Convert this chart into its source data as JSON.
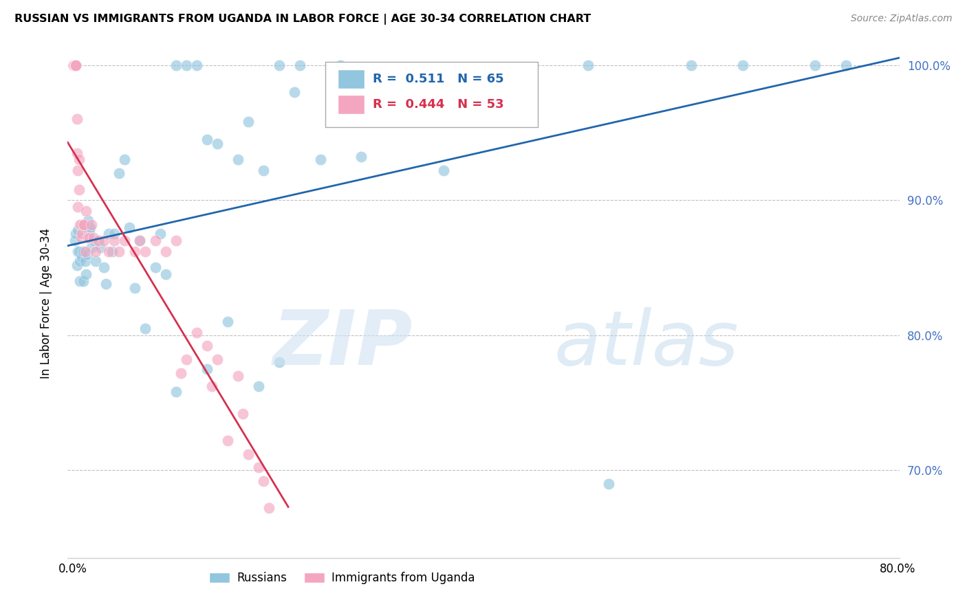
{
  "title": "RUSSIAN VS IMMIGRANTS FROM UGANDA IN LABOR FORCE | AGE 30-34 CORRELATION CHART",
  "source": "Source: ZipAtlas.com",
  "ylabel": "In Labor Force | Age 30-34",
  "xlim": [
    -0.005,
    0.802
  ],
  "ylim": [
    0.635,
    1.012
  ],
  "yticks": [
    0.7,
    0.8,
    0.9,
    1.0
  ],
  "ytick_labels": [
    "70.0%",
    "80.0%",
    "90.0%",
    "100.0%"
  ],
  "xtick_vals": [
    0.0,
    0.1,
    0.2,
    0.3,
    0.4,
    0.5,
    0.6,
    0.7,
    0.8
  ],
  "xtick_labels": [
    "0.0%",
    "",
    "",
    "",
    "",
    "",
    "",
    "",
    "80.0%"
  ],
  "R_blue": 0.511,
  "N_blue": 65,
  "R_pink": 0.444,
  "N_pink": 53,
  "blue_color": "#92c5de",
  "pink_color": "#f4a6c0",
  "blue_line_color": "#2166ac",
  "pink_line_color": "#d6304e",
  "grid_color": "#c0c0c0",
  "blue_x": [
    0.002,
    0.003,
    0.004,
    0.005,
    0.005,
    0.006,
    0.007,
    0.007,
    0.008,
    0.009,
    0.01,
    0.01,
    0.011,
    0.012,
    0.013,
    0.014,
    0.015,
    0.016,
    0.017,
    0.018,
    0.02,
    0.022,
    0.025,
    0.027,
    0.03,
    0.032,
    0.035,
    0.038,
    0.04,
    0.045,
    0.05,
    0.055,
    0.06,
    0.065,
    0.07,
    0.08,
    0.085,
    0.09,
    0.1,
    0.11,
    0.12,
    0.13,
    0.14,
    0.16,
    0.17,
    0.185,
    0.2,
    0.215,
    0.22,
    0.24,
    0.26,
    0.28,
    0.3,
    0.36,
    0.5,
    0.52,
    0.6,
    0.65,
    0.72,
    0.75,
    0.1,
    0.13,
    0.15,
    0.18,
    0.2
  ],
  "blue_y": [
    0.87,
    0.875,
    0.852,
    0.862,
    0.878,
    0.862,
    0.855,
    0.84,
    0.882,
    0.858,
    0.84,
    0.862,
    0.882,
    0.855,
    0.845,
    0.86,
    0.885,
    0.878,
    0.88,
    0.865,
    0.87,
    0.855,
    0.87,
    0.865,
    0.85,
    0.838,
    0.875,
    0.862,
    0.875,
    0.92,
    0.93,
    0.88,
    0.835,
    0.87,
    0.805,
    0.85,
    0.875,
    0.845,
    1.0,
    1.0,
    1.0,
    0.945,
    0.942,
    0.93,
    0.958,
    0.922,
    1.0,
    0.98,
    1.0,
    0.93,
    1.0,
    0.932,
    0.98,
    0.922,
    1.0,
    0.69,
    1.0,
    1.0,
    1.0,
    1.0,
    0.758,
    0.775,
    0.81,
    0.762,
    0.78
  ],
  "pink_x": [
    0.001,
    0.001,
    0.001,
    0.002,
    0.002,
    0.002,
    0.003,
    0.003,
    0.003,
    0.004,
    0.004,
    0.005,
    0.005,
    0.006,
    0.006,
    0.007,
    0.008,
    0.008,
    0.009,
    0.01,
    0.011,
    0.012,
    0.013,
    0.015,
    0.016,
    0.018,
    0.02,
    0.022,
    0.025,
    0.03,
    0.035,
    0.04,
    0.045,
    0.05,
    0.06,
    0.065,
    0.07,
    0.08,
    0.09,
    0.1,
    0.105,
    0.11,
    0.12,
    0.13,
    0.135,
    0.14,
    0.15,
    0.16,
    0.165,
    0.17,
    0.18,
    0.185,
    0.19
  ],
  "pink_y": [
    1.0,
    1.0,
    1.0,
    1.0,
    1.0,
    1.0,
    1.0,
    1.0,
    1.0,
    0.96,
    0.935,
    0.922,
    0.895,
    0.93,
    0.908,
    0.882,
    0.872,
    0.882,
    0.875,
    0.882,
    0.882,
    0.862,
    0.892,
    0.872,
    0.872,
    0.882,
    0.872,
    0.862,
    0.87,
    0.87,
    0.862,
    0.87,
    0.862,
    0.87,
    0.862,
    0.87,
    0.862,
    0.87,
    0.862,
    0.87,
    0.772,
    0.782,
    0.802,
    0.792,
    0.762,
    0.782,
    0.722,
    0.77,
    0.742,
    0.712,
    0.702,
    0.692,
    0.672
  ]
}
